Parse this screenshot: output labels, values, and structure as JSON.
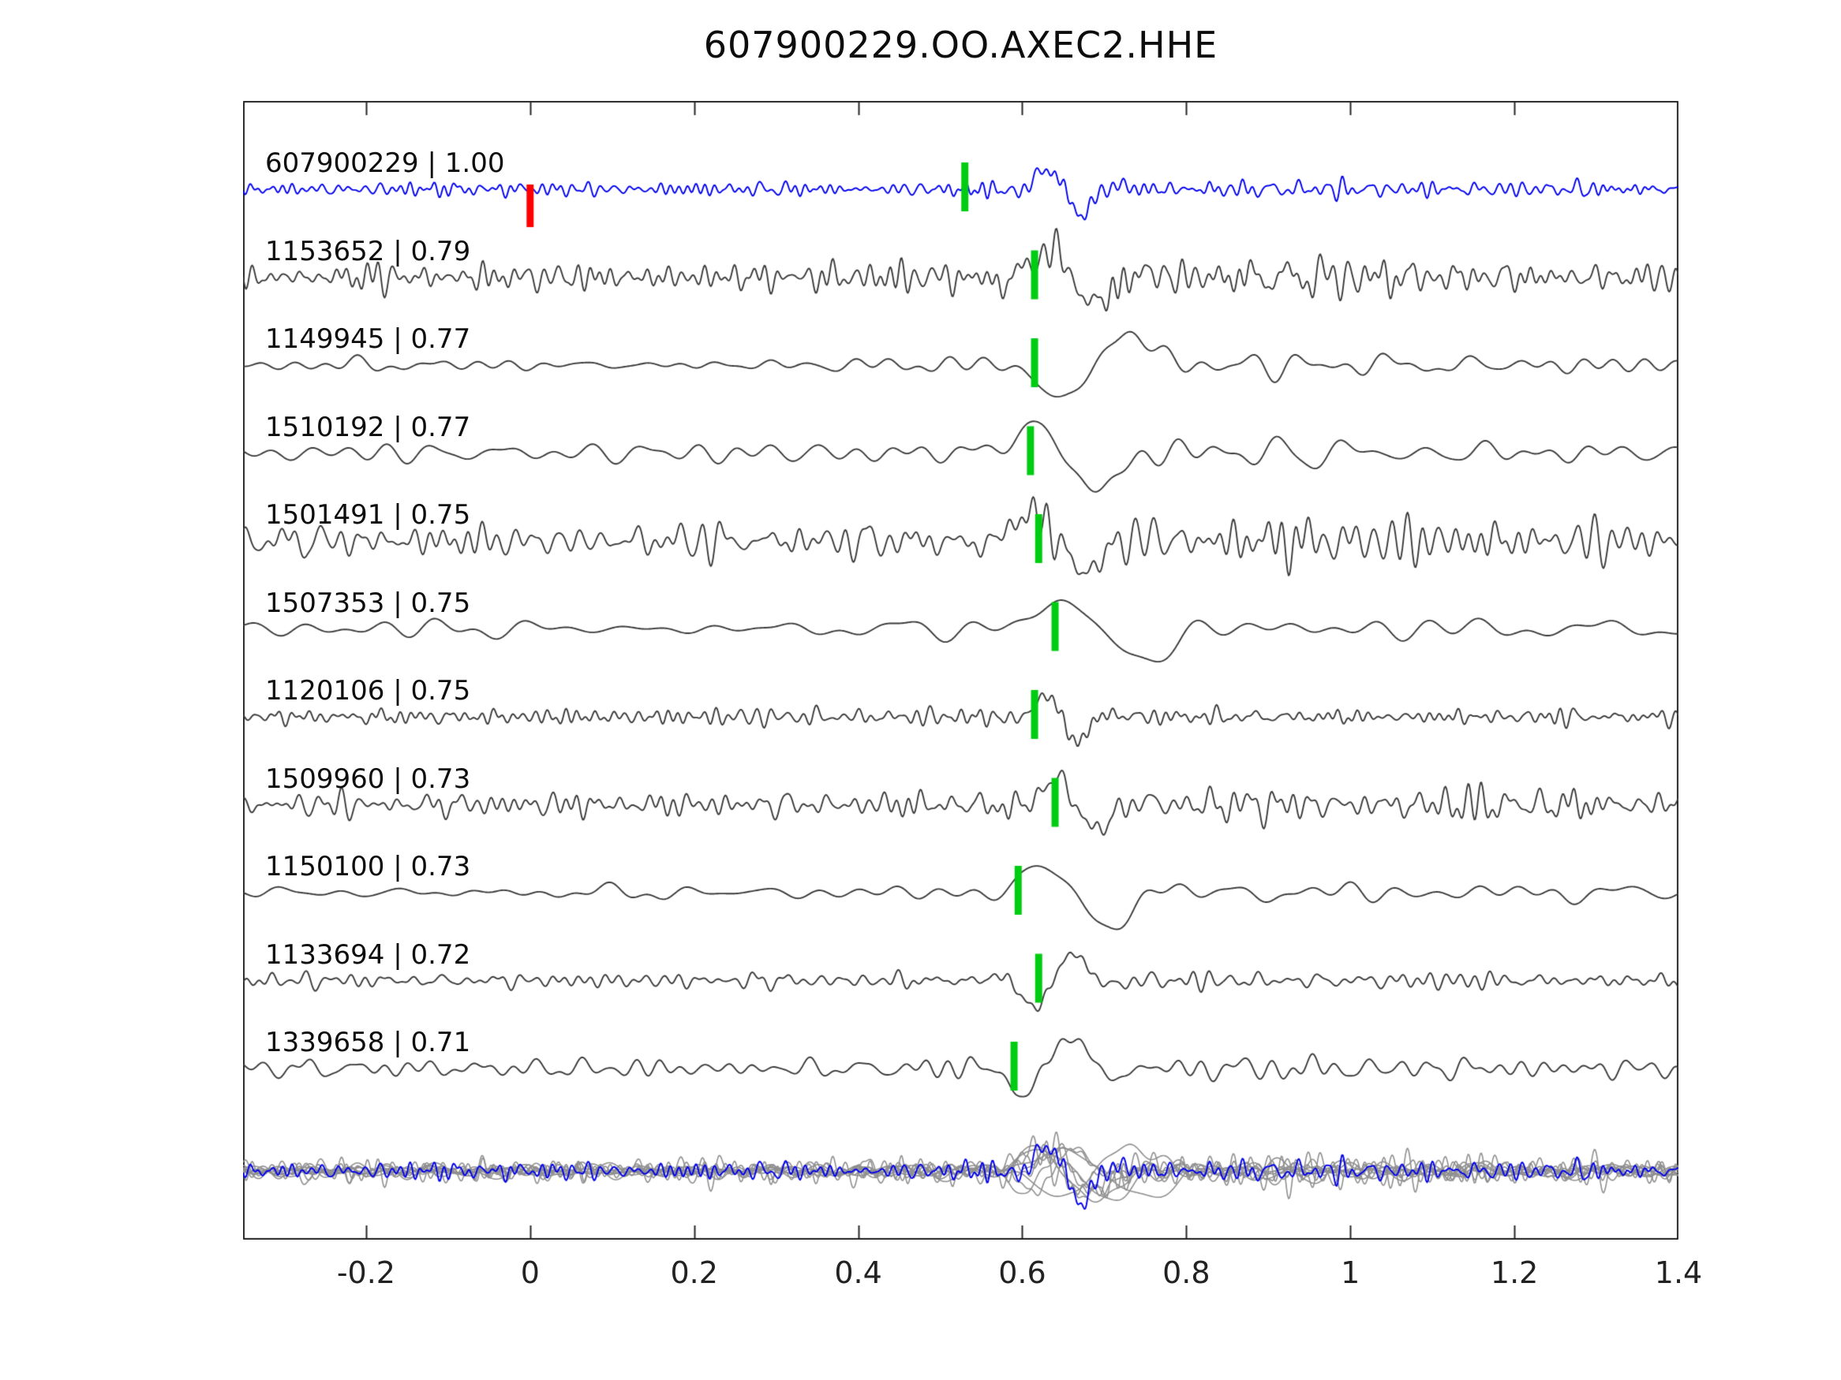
{
  "chart_data": {
    "type": "line",
    "title": "607900229.OO.AXEC2.HHE",
    "xlabel": "",
    "ylabel": "",
    "xlim": [
      -0.35,
      1.4
    ],
    "x_tick_values": [
      -0.2,
      0,
      0.2,
      0.4,
      0.6,
      0.8,
      1,
      1.2,
      1.4
    ],
    "x_tick_labels": [
      "-0.2",
      "0",
      "0.2",
      "0.4",
      "0.6",
      "0.8",
      "1",
      "1.2",
      "1.4"
    ],
    "grid": false,
    "legend": "none",
    "overlay_row_note": "bottom row: all matched waveforms superimposed in gray with template waveform in blue",
    "traces": [
      {
        "id": "607900229",
        "cc": "1.00",
        "label": "607900229 | 1.00",
        "is_template": true,
        "pick_x": 0.53,
        "origin_x": 0.0,
        "synth": {
          "seed": 11,
          "na": 12,
          "cyc": 110,
          "ex": 0.655,
          "ew": 0.045,
          "ep": 0.1,
          "eph": 3.4,
          "ea": 36,
          "coda": 0.35
        }
      },
      {
        "id": "1153652",
        "cc": "0.79",
        "label": "1153652 | 0.79",
        "is_template": false,
        "pick_x": 0.615,
        "origin_x": null,
        "synth": {
          "seed": 22,
          "na": 26,
          "cyc": 90,
          "ex": 0.66,
          "ew": 0.065,
          "ep": 0.14,
          "eph": 3.1,
          "ea": 42,
          "coda": 0.5
        }
      },
      {
        "id": "1149945",
        "cc": "0.77",
        "label": "1149945 | 0.77",
        "is_template": false,
        "pick_x": 0.615,
        "origin_x": null,
        "synth": {
          "seed": 33,
          "na": 13,
          "cyc": 30,
          "ex": 0.69,
          "ew": 0.085,
          "ep": 0.23,
          "eph": 0.0,
          "ea": 52,
          "coda": 0.7
        }
      },
      {
        "id": "1510192",
        "cc": "0.77",
        "label": "1510192 | 0.77",
        "is_template": false,
        "pick_x": 0.61,
        "origin_x": null,
        "synth": {
          "seed": 44,
          "na": 14,
          "cyc": 28,
          "ex": 0.66,
          "ew": 0.08,
          "ep": 0.22,
          "eph": 3.5,
          "ea": 52,
          "coda": 0.5
        }
      },
      {
        "id": "1501491",
        "cc": "0.75",
        "label": "1501491 | 0.75",
        "is_template": false,
        "pick_x": 0.62,
        "origin_x": null,
        "synth": {
          "seed": 55,
          "na": 30,
          "cyc": 75,
          "ex": 0.645,
          "ew": 0.07,
          "ep": 0.16,
          "eph": 3.2,
          "ea": 46,
          "coda": 0.9
        }
      },
      {
        "id": "1507353",
        "cc": "0.75",
        "label": "1507353 | 0.75",
        "is_template": false,
        "pick_x": 0.64,
        "origin_x": null,
        "synth": {
          "seed": 66,
          "na": 13,
          "cyc": 22,
          "ex": 0.7,
          "ew": 0.1,
          "ep": 0.26,
          "eph": 3.3,
          "ea": 48,
          "coda": 0.9
        }
      },
      {
        "id": "1120106",
        "cc": "0.75",
        "label": "1120106 | 0.75",
        "is_template": false,
        "pick_x": 0.615,
        "origin_x": null,
        "synth": {
          "seed": 77,
          "na": 14,
          "cyc": 100,
          "ex": 0.65,
          "ew": 0.04,
          "ep": 0.095,
          "eph": 3.3,
          "ea": 38,
          "coda": 0.25
        }
      },
      {
        "id": "1509960",
        "cc": "0.73",
        "label": "1509960 | 0.73",
        "is_template": false,
        "pick_x": 0.64,
        "origin_x": null,
        "synth": {
          "seed": 88,
          "na": 22,
          "cyc": 85,
          "ex": 0.665,
          "ew": 0.055,
          "ep": 0.125,
          "eph": 3.1,
          "ea": 40,
          "coda": 0.5
        }
      },
      {
        "id": "1150100",
        "cc": "0.73",
        "label": "1150100 | 0.73",
        "is_template": false,
        "pick_x": 0.595,
        "origin_x": null,
        "synth": {
          "seed": 99,
          "na": 13,
          "cyc": 26,
          "ex": 0.67,
          "ew": 0.07,
          "ep": 0.2,
          "eph": 3.4,
          "ea": 54,
          "coda": 0.5
        }
      },
      {
        "id": "1133694",
        "cc": "0.72",
        "label": "1133694 | 0.72",
        "is_template": false,
        "pick_x": 0.62,
        "origin_x": null,
        "synth": {
          "seed": 111,
          "na": 13,
          "cyc": 75,
          "ex": 0.64,
          "ew": 0.05,
          "ep": 0.11,
          "eph": 0.1,
          "ea": 44,
          "coda": 0.35
        }
      },
      {
        "id": "1339658",
        "cc": "0.71",
        "label": "1339658 | 0.71",
        "is_template": false,
        "pick_x": 0.59,
        "origin_x": null,
        "synth": {
          "seed": 122,
          "na": 14,
          "cyc": 48,
          "ex": 0.635,
          "ew": 0.06,
          "ep": 0.13,
          "eph": 0.4,
          "ea": 48,
          "coda": 0.4
        }
      }
    ]
  },
  "colors": {
    "template_trace": "#0000ee",
    "match_trace": "#3a3a3a",
    "overlay_trace": "#8f8f8f",
    "pick_marker_green": "#00cc11",
    "origin_marker_red": "#ff0000",
    "axis_frame": "#262626",
    "text": "#111111",
    "background": "#ffffff"
  }
}
